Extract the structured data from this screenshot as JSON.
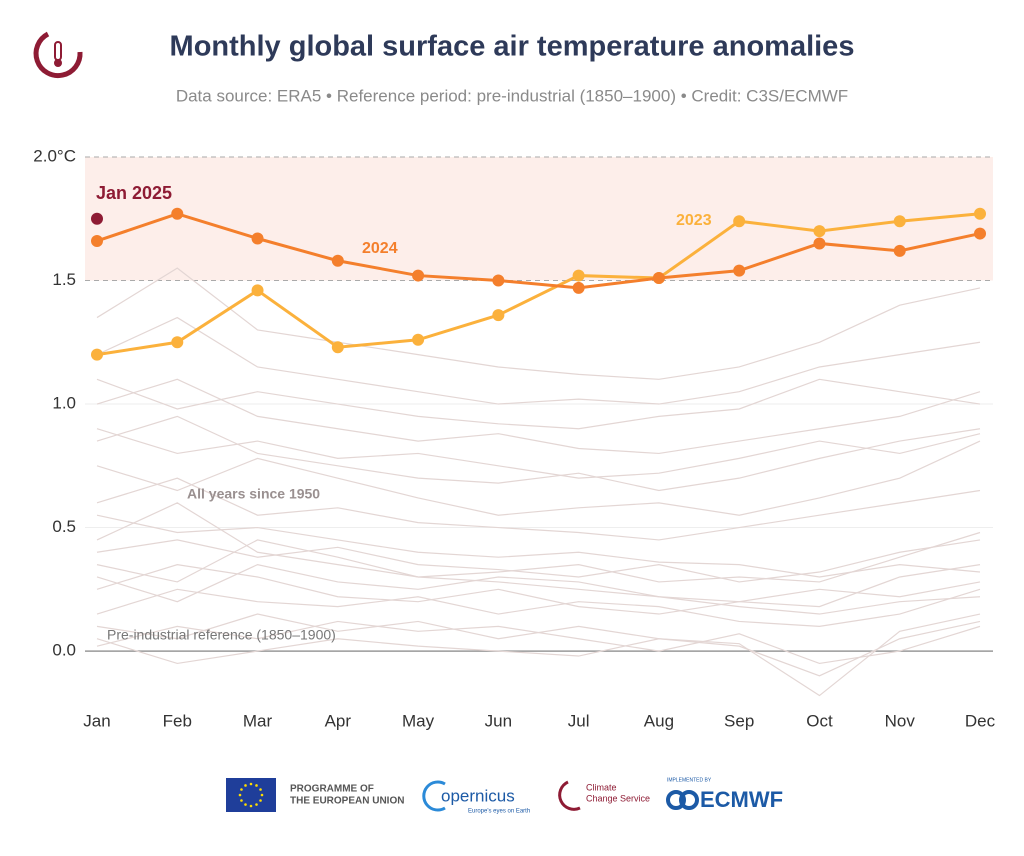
{
  "chart_data": {
    "type": "line",
    "title": "Monthly global surface air temperature anomalies",
    "subtitle": "Data source: ERA5 • Reference period: pre-industrial (1850–1900) • Credit: C3S/ECMWF",
    "annotations": [
      "All years since 1950",
      "Pre-industrial reference (1850–1900)"
    ],
    "categories": [
      "Jan",
      "Feb",
      "Mar",
      "Apr",
      "May",
      "Jun",
      "Jul",
      "Aug",
      "Sep",
      "Oct",
      "Nov",
      "Dec"
    ],
    "ylim": [
      -0.2,
      2.05
    ],
    "yticks": [
      {
        "value": 0,
        "label": "0.0"
      },
      0.5,
      {
        "value": 1,
        "label": "1.0"
      },
      1.5,
      {
        "value": 2,
        "label": "2.0°C"
      }
    ],
    "grid": true,
    "shaded_range": [
      1.5,
      2
    ],
    "shaded_color": "#fdeeea",
    "background_color": "#e3d6d4",
    "series": [
      {
        "values": [
          0.02,
          0.1,
          0.05,
          0.12,
          0.08,
          0.1,
          0.05,
          0.0,
          0.07,
          -0.05,
          0.0,
          0.1
        ]
      },
      {
        "values": [
          0.15,
          0.25,
          0.2,
          0.18,
          0.22,
          0.15,
          0.2,
          0.18,
          0.12,
          0.1,
          0.15,
          0.25
        ]
      },
      {
        "values": [
          0.3,
          0.2,
          0.35,
          0.28,
          0.25,
          0.3,
          0.28,
          0.22,
          0.2,
          0.18,
          0.3,
          0.35
        ]
      },
      {
        "values": [
          0.4,
          0.45,
          0.38,
          0.42,
          0.35,
          0.33,
          0.3,
          0.35,
          0.28,
          0.32,
          0.4,
          0.45
        ]
      },
      {
        "values": [
          0.55,
          0.48,
          0.5,
          0.45,
          0.4,
          0.38,
          0.4,
          0.36,
          0.35,
          0.3,
          0.35,
          0.32
        ]
      },
      {
        "values": [
          0.25,
          0.35,
          0.3,
          0.22,
          0.2,
          0.25,
          0.18,
          0.15,
          0.2,
          0.25,
          0.22,
          0.28
        ]
      },
      {
        "values": [
          0.6,
          0.7,
          0.55,
          0.58,
          0.52,
          0.5,
          0.48,
          0.45,
          0.5,
          0.55,
          0.6,
          0.65
        ]
      },
      {
        "values": [
          0.75,
          0.65,
          0.78,
          0.7,
          0.62,
          0.55,
          0.58,
          0.6,
          0.55,
          0.62,
          0.7,
          0.85
        ]
      },
      {
        "values": [
          0.85,
          0.95,
          0.8,
          0.75,
          0.7,
          0.68,
          0.72,
          0.65,
          0.7,
          0.78,
          0.85,
          0.9
        ]
      },
      {
        "values": [
          1.0,
          1.1,
          0.95,
          0.9,
          0.85,
          0.88,
          0.82,
          0.8,
          0.85,
          0.9,
          0.95,
          1.05
        ]
      },
      {
        "values": [
          1.1,
          0.98,
          1.05,
          1.0,
          0.95,
          0.92,
          0.9,
          0.95,
          0.98,
          1.1,
          1.05,
          1.0
        ]
      },
      {
        "values": [
          1.2,
          1.35,
          1.15,
          1.1,
          1.05,
          1.0,
          1.02,
          1.0,
          1.05,
          1.15,
          1.2,
          1.25
        ]
      },
      {
        "values": [
          1.35,
          1.55,
          1.3,
          1.25,
          1.2,
          1.15,
          1.12,
          1.1,
          1.15,
          1.25,
          1.4,
          1.47
        ]
      },
      {
        "values": [
          0.1,
          0.05,
          0.15,
          0.08,
          0.12,
          0.05,
          0.1,
          0.05,
          0.02,
          -0.1,
          0.05,
          0.12
        ]
      },
      {
        "values": [
          0.45,
          0.6,
          0.4,
          0.35,
          0.3,
          0.28,
          0.25,
          0.22,
          0.18,
          0.15,
          0.2,
          0.22
        ]
      },
      {
        "values": [
          0.9,
          0.8,
          0.85,
          0.78,
          0.8,
          0.75,
          0.7,
          0.72,
          0.78,
          0.85,
          0.8,
          0.88
        ]
      },
      {
        "values": [
          0.35,
          0.28,
          0.45,
          0.38,
          0.3,
          0.32,
          0.35,
          0.28,
          0.3,
          0.28,
          0.38,
          0.48
        ]
      },
      {
        "values": [
          0.05,
          -0.05,
          0.0,
          0.05,
          0.02,
          0.0,
          -0.02,
          0.05,
          0.03,
          -0.18,
          0.08,
          0.15
        ]
      },
      {
        "name": "2023",
        "color": "#fbb13c",
        "values": [
          1.2,
          1.25,
          1.46,
          1.23,
          1.26,
          1.36,
          1.52,
          1.51,
          1.74,
          1.7,
          1.74,
          1.77
        ]
      },
      {
        "name": "2024",
        "color": "#f47f2c",
        "values": [
          1.66,
          1.77,
          1.67,
          1.58,
          1.52,
          1.5,
          1.47,
          1.51,
          1.54,
          1.65,
          1.62,
          1.69
        ]
      },
      {
        "name": "Jan 2025",
        "color": "#8e1b34",
        "values": [
          1.75,
          null,
          null,
          null,
          null,
          null,
          null,
          null,
          null,
          null,
          null,
          null
        ]
      }
    ]
  },
  "footer": {
    "eu": "PROGRAMME OF",
    "eu2": "THE EUROPEAN UNION",
    "copernicus": "opernicus",
    "copernicus_tagline": "Europe's eyes on Earth",
    "c3s": "Climate",
    "c3s2": "Change Service",
    "implemented": "IMPLEMENTED BY",
    "ecmwf": "ECMWF"
  }
}
